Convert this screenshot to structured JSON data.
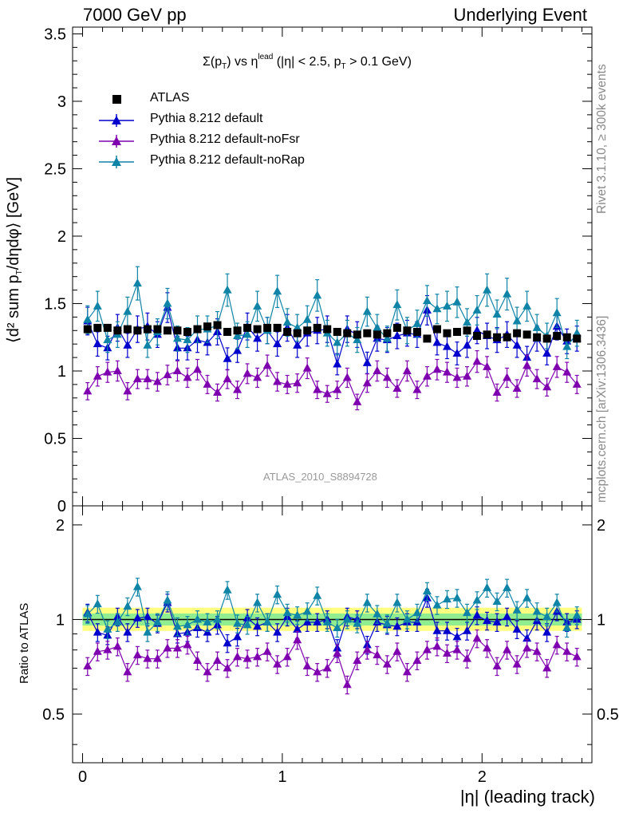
{
  "header": {
    "left": "7000 GeV pp",
    "right": "Underlying Event"
  },
  "side_labels": {
    "top": "Rivet 3.1.10, ≥ 300k events",
    "bottom": "mcplots.cern.ch [arXiv:1306.3436]"
  },
  "title": {
    "sigma": "Σ(p",
    "sub_T": "T",
    "vs": ") vs η",
    "sup_lead": "lead",
    "range": " (|η| < 2.5, p",
    "sub_T2": "T",
    "cut": " > 0.1 GeV)"
  },
  "analysis_tag": "ATLAS_2010_S8894728",
  "axes": {
    "ylabel_main": "⟨d² sum p",
    "ylabel_main_sub": "T",
    "ylabel_main_tail": "/dηdφ⟩ [GeV]",
    "ylabel_ratio": "Ratio to ATLAS",
    "xlabel": "|η| (leading track)",
    "main_yticks": [
      "0",
      "0.5",
      "1",
      "1.5",
      "2",
      "2.5",
      "3",
      "3.5"
    ],
    "ratio_yticks": [
      "0.5",
      "1",
      "2"
    ],
    "xticks": [
      "0",
      "1",
      "2"
    ]
  },
  "colors": {
    "atlas": "#000000",
    "default": "#0000cc",
    "noFsr": "#7e00ae",
    "noRap": "#0f84a6",
    "band_outer": "#ffff80",
    "band_inner": "#90ee90",
    "ratio_line": "#000000"
  },
  "chart_data": [
    {
      "type": "scatter",
      "panel": "main",
      "xlim": [
        -0.05,
        2.55
      ],
      "ylim": [
        0,
        3.55
      ],
      "x": [
        0.025,
        0.075,
        0.125,
        0.175,
        0.225,
        0.275,
        0.325,
        0.375,
        0.425,
        0.475,
        0.525,
        0.575,
        0.625,
        0.675,
        0.725,
        0.775,
        0.825,
        0.875,
        0.925,
        0.975,
        1.025,
        1.075,
        1.125,
        1.175,
        1.225,
        1.275,
        1.325,
        1.375,
        1.425,
        1.475,
        1.525,
        1.575,
        1.625,
        1.675,
        1.725,
        1.775,
        1.825,
        1.875,
        1.925,
        1.975,
        2.025,
        2.075,
        2.125,
        2.175,
        2.225,
        2.275,
        2.325,
        2.375,
        2.425,
        2.475
      ],
      "series": [
        {
          "name": "ATLAS",
          "marker": "square",
          "values": [
            1.31,
            1.32,
            1.32,
            1.3,
            1.31,
            1.3,
            1.31,
            1.31,
            1.3,
            1.3,
            1.29,
            1.31,
            1.33,
            1.34,
            1.29,
            1.3,
            1.32,
            1.31,
            1.32,
            1.32,
            1.29,
            1.28,
            1.3,
            1.32,
            1.31,
            1.29,
            1.28,
            1.27,
            1.28,
            1.27,
            1.28,
            1.32,
            1.3,
            1.29,
            1.24,
            1.31,
            1.28,
            1.29,
            1.3,
            1.26,
            1.27,
            1.25,
            1.25,
            1.28,
            1.27,
            1.25,
            1.24,
            1.26,
            1.25,
            1.24
          ]
        },
        {
          "name": "Pythia 8.212 default",
          "marker": "triangle",
          "values": [
            1.37,
            1.2,
            1.17,
            1.32,
            1.19,
            1.31,
            1.33,
            1.27,
            1.47,
            1.17,
            1.17,
            1.23,
            1.21,
            1.29,
            1.09,
            1.15,
            1.33,
            1.24,
            1.3,
            1.2,
            1.32,
            1.19,
            1.28,
            1.3,
            1.31,
            1.05,
            1.31,
            1.27,
            1.06,
            1.24,
            1.23,
            1.26,
            1.28,
            1.27,
            1.45,
            1.21,
            1.18,
            1.13,
            1.19,
            1.3,
            1.26,
            1.23,
            1.27,
            1.19,
            1.1,
            1.24,
            1.13,
            1.33,
            1.22,
            1.24
          ]
        },
        {
          "name": "Pythia 8.212 default-noFsr",
          "marker": "triangle",
          "values": [
            0.85,
            0.96,
            0.99,
            1.0,
            0.85,
            0.94,
            0.94,
            0.92,
            0.97,
            1.0,
            0.95,
            1.01,
            0.9,
            0.84,
            0.94,
            0.86,
            0.98,
            0.95,
            1.04,
            0.92,
            0.9,
            0.91,
            1.02,
            0.86,
            0.83,
            0.86,
            0.95,
            0.77,
            0.91,
            1.0,
            0.95,
            0.87,
            1.0,
            0.86,
            0.96,
            1.01,
            0.99,
            0.95,
            0.96,
            1.07,
            1.03,
            0.84,
            0.95,
            0.87,
            1.04,
            0.94,
            0.88,
            1.03,
            0.99,
            0.9
          ]
        },
        {
          "name": "Pythia 8.212 default-noRap",
          "marker": "triangle",
          "values": [
            1.38,
            1.48,
            1.23,
            1.27,
            1.44,
            1.65,
            1.19,
            1.29,
            1.5,
            1.24,
            1.23,
            1.31,
            1.31,
            1.34,
            1.6,
            1.26,
            1.27,
            1.48,
            1.3,
            1.59,
            1.36,
            1.32,
            1.38,
            1.56,
            1.28,
            1.21,
            1.28,
            1.23,
            1.44,
            1.32,
            1.24,
            1.49,
            1.3,
            1.35,
            1.52,
            1.46,
            1.48,
            1.51,
            1.36,
            1.45,
            1.6,
            1.42,
            1.57,
            1.37,
            1.48,
            1.32,
            1.26,
            1.43,
            1.18,
            1.28
          ]
        }
      ]
    },
    {
      "type": "scatter",
      "panel": "ratio",
      "xlim": [
        -0.05,
        2.55
      ],
      "ylim": [
        0.35,
        2.3
      ],
      "reference": 1,
      "series": [
        {
          "name": "Pythia 8.212 default",
          "values": [
            1.05,
            0.91,
            0.89,
            1.02,
            0.91,
            1.01,
            1.02,
            0.97,
            1.13,
            0.9,
            0.91,
            0.94,
            0.91,
            0.96,
            0.84,
            0.88,
            1.01,
            0.95,
            0.98,
            0.91,
            1.02,
            0.93,
            0.98,
            0.98,
            1.0,
            0.81,
            1.02,
            1.0,
            0.83,
            0.98,
            0.96,
            0.95,
            0.98,
            0.98,
            1.17,
            0.92,
            0.92,
            0.88,
            0.92,
            1.03,
            0.99,
            0.98,
            1.02,
            0.93,
            0.87,
            0.99,
            0.91,
            1.06,
            0.98,
            1.0
          ]
        },
        {
          "name": "Pythia 8.212 default-noFsr",
          "values": [
            0.71,
            0.79,
            0.8,
            0.82,
            0.68,
            0.77,
            0.75,
            0.75,
            0.81,
            0.81,
            0.83,
            0.74,
            0.68,
            0.74,
            0.7,
            0.76,
            0.75,
            0.76,
            0.79,
            0.72,
            0.76,
            0.86,
            0.71,
            0.68,
            0.7,
            0.78,
            0.62,
            0.74,
            0.8,
            0.77,
            0.72,
            0.79,
            0.68,
            0.74,
            0.8,
            0.82,
            0.78,
            0.8,
            0.75,
            0.87,
            0.81,
            0.71,
            0.8,
            0.72,
            0.81,
            0.79,
            0.7,
            0.83,
            0.79,
            0.76
          ]
        },
        {
          "name": "Pythia 8.212 default-noRap",
          "values": [
            1.04,
            1.12,
            0.93,
            0.98,
            1.1,
            1.27,
            0.91,
            0.98,
            1.15,
            0.95,
            0.96,
            1.0,
            0.98,
            1.0,
            1.24,
            0.97,
            0.96,
            1.13,
            0.98,
            1.2,
            1.05,
            1.03,
            1.06,
            1.19,
            0.98,
            0.94,
            1.0,
            0.97,
            1.13,
            1.04,
            0.97,
            1.13,
            1.0,
            1.05,
            1.23,
            1.11,
            1.16,
            1.17,
            1.05,
            1.15,
            1.26,
            1.14,
            1.26,
            1.07,
            1.17,
            1.06,
            1.02,
            1.13,
            0.94,
            1.03
          ]
        }
      ]
    }
  ]
}
